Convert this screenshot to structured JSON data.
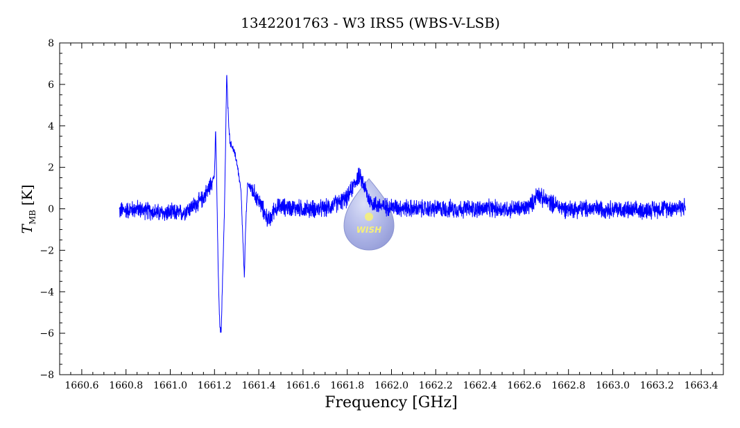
{
  "chart_data": {
    "type": "line",
    "title": "1342201763 - W3 IRS5 (WBS-V-LSB)",
    "xlabel": "Frequency [GHz]",
    "ylabel_symbol": "T",
    "ylabel_subscript": "MB",
    "ylabel_unit": "[K]",
    "xlim": [
      1660.5,
      1663.5
    ],
    "ylim": [
      -8,
      8
    ],
    "x_ticks": [
      1660.6,
      1660.8,
      1661.0,
      1661.2,
      1661.4,
      1661.6,
      1661.8,
      1662.0,
      1662.2,
      1662.4,
      1662.6,
      1662.8,
      1663.0,
      1663.2,
      1663.4
    ],
    "x_tick_labels": [
      "1660.6",
      "1660.8",
      "1661.0",
      "1661.2",
      "1661.4",
      "1661.6",
      "1661.8",
      "1662.0",
      "1662.2",
      "1662.4",
      "1662.6",
      "1662.8",
      "1663.0",
      "1663.2",
      "1663.4"
    ],
    "y_ticks": [
      -8,
      -6,
      -4,
      -2,
      0,
      2,
      4,
      6,
      8
    ],
    "y_tick_labels": [
      "−8",
      "−6",
      "−4",
      "−2",
      "0",
      "2",
      "4",
      "6",
      "8"
    ],
    "grid": false,
    "series": [
      {
        "color": "#0000ff",
        "noise_amplitude": 0.35,
        "x": [
          1660.77,
          1660.85,
          1660.95,
          1661.05,
          1661.1,
          1661.14,
          1661.17,
          1661.19,
          1661.2,
          1661.205,
          1661.21,
          1661.215,
          1661.22,
          1661.225,
          1661.23,
          1661.235,
          1661.24,
          1661.245,
          1661.25,
          1661.255,
          1661.26,
          1661.265,
          1661.27,
          1661.28,
          1661.29,
          1661.3,
          1661.31,
          1661.32,
          1661.33,
          1661.335,
          1661.34,
          1661.35,
          1661.37,
          1661.4,
          1661.43,
          1661.45,
          1661.47,
          1661.5,
          1661.6,
          1661.7,
          1661.8,
          1661.85,
          1661.87,
          1661.88,
          1661.9,
          1661.93,
          1661.97,
          1662.0,
          1662.1,
          1662.2,
          1662.3,
          1662.4,
          1662.5,
          1662.6,
          1662.64,
          1662.66,
          1662.68,
          1662.72,
          1662.78,
          1662.9,
          1663.0,
          1663.1,
          1663.2,
          1663.33
        ],
        "y": [
          -0.1,
          0.0,
          -0.2,
          -0.2,
          0.1,
          0.4,
          0.9,
          1.4,
          1.6,
          3.9,
          1.2,
          -2.0,
          -4.5,
          -5.8,
          -5.9,
          -4.0,
          -2.0,
          0.0,
          3.0,
          6.6,
          5.0,
          4.0,
          3.2,
          3.0,
          2.7,
          2.3,
          1.6,
          0.8,
          -2.0,
          -3.4,
          -1.0,
          1.2,
          0.9,
          0.4,
          -0.3,
          -0.6,
          0.0,
          0.1,
          0.0,
          0.0,
          0.5,
          1.6,
          1.3,
          1.0,
          0.4,
          0.2,
          0.1,
          0.1,
          0.0,
          0.0,
          0.0,
          0.0,
          0.0,
          0.0,
          0.3,
          0.8,
          0.5,
          0.3,
          0.0,
          0.0,
          0.0,
          -0.1,
          0.0,
          0.1
        ]
      }
    ]
  },
  "logo": {
    "text": "WISH",
    "color": "#9aa4e0",
    "text_color": "#f5ef7a"
  }
}
